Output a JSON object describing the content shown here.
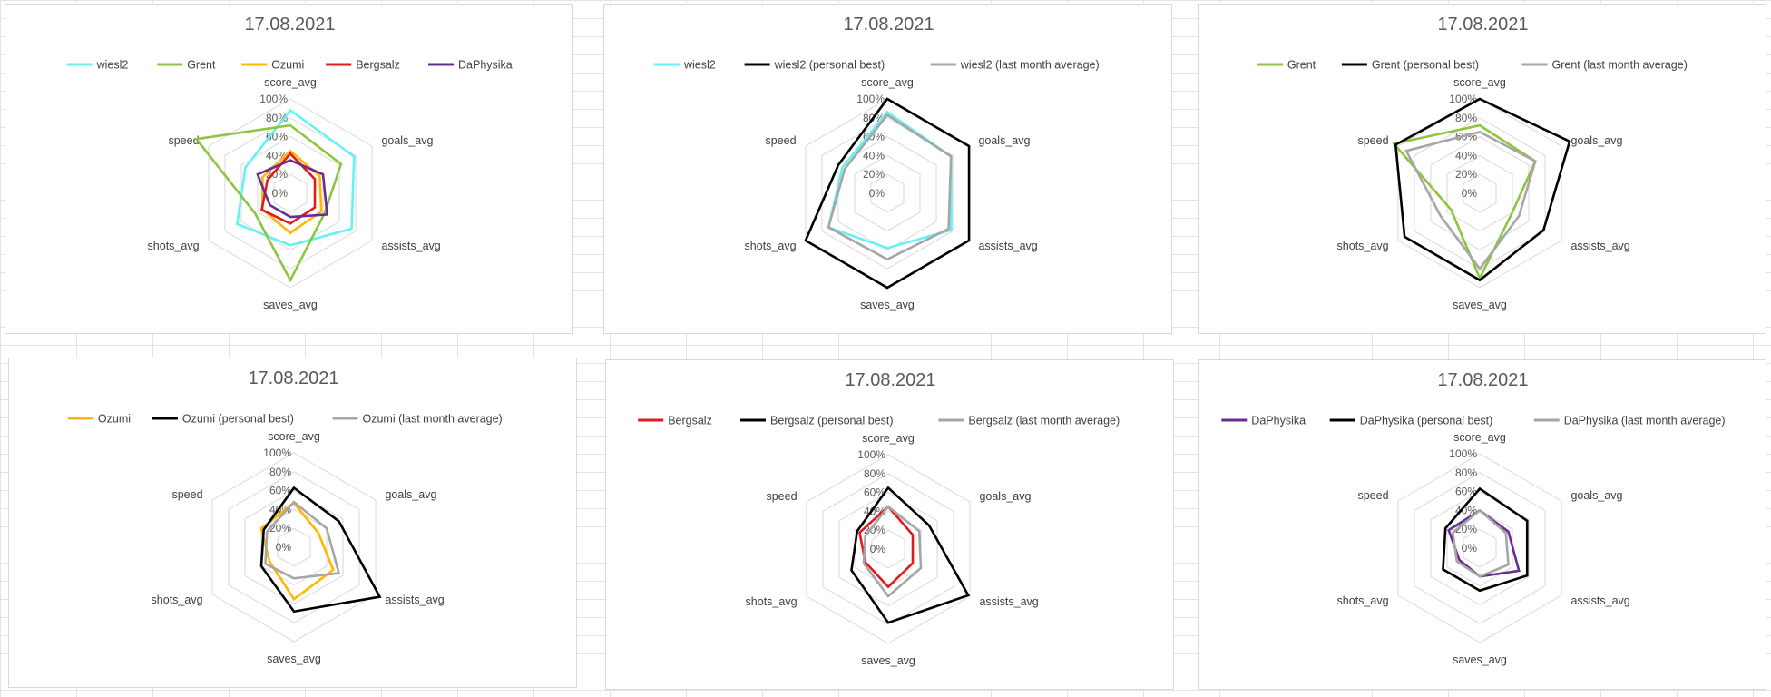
{
  "chart_data": [
    {
      "type": "radar",
      "title": "17.08.2021",
      "axes": [
        "score_avg",
        "goals_avg",
        "assists_avg",
        "saves_avg",
        "shots_avg",
        "speed"
      ],
      "ticks": [
        "0%",
        "20%",
        "40%",
        "60%",
        "80%",
        "100%"
      ],
      "rlim": [
        0,
        100
      ],
      "legend_position": "top",
      "grid": true,
      "series": [
        {
          "name": "wiesl2",
          "color": "#66f2f2",
          "values": [
            88,
            78,
            75,
            55,
            65,
            55
          ]
        },
        {
          "name": "Grent",
          "color": "#8cc63f",
          "values": [
            72,
            62,
            42,
            92,
            43,
            115
          ]
        },
        {
          "name": "Ozumi",
          "color": "#ffb800",
          "values": [
            45,
            36,
            38,
            42,
            34,
            34
          ]
        },
        {
          "name": "Bergsalz",
          "color": "#e31a1c",
          "values": [
            42,
            30,
            30,
            32,
            35,
            28
          ]
        },
        {
          "name": "DaPhysika",
          "color": "#6a2c91",
          "values": [
            35,
            40,
            45,
            25,
            25,
            40
          ]
        }
      ]
    },
    {
      "type": "radar",
      "title": "17.08.2021",
      "axes": [
        "score_avg",
        "goals_avg",
        "assists_avg",
        "saves_avg",
        "shots_avg",
        "speed"
      ],
      "ticks": [
        "0%",
        "20%",
        "40%",
        "60%",
        "80%",
        "100%"
      ],
      "rlim": [
        0,
        100
      ],
      "legend_position": "top",
      "grid": true,
      "series": [
        {
          "name": "wiesl2",
          "color": "#66f2f2",
          "values": [
            86,
            78,
            78,
            58,
            72,
            55
          ]
        },
        {
          "name": "wiesl2 (personal best)",
          "color": "#000000",
          "values": [
            100,
            100,
            100,
            100,
            100,
            60
          ]
        },
        {
          "name": "wiesl2 (last month average)",
          "color": "#a6a6a6",
          "values": [
            83,
            78,
            75,
            70,
            72,
            52
          ]
        }
      ]
    },
    {
      "type": "radar",
      "title": "17.08.2021",
      "axes": [
        "score_avg",
        "goals_avg",
        "assists_avg",
        "saves_avg",
        "shots_avg",
        "speed"
      ],
      "ticks": [
        "0%",
        "20%",
        "40%",
        "60%",
        "80%",
        "100%"
      ],
      "rlim": [
        0,
        100
      ],
      "legend_position": "top",
      "grid": true,
      "series": [
        {
          "name": "Grent",
          "color": "#8cc63f",
          "values": [
            72,
            68,
            40,
            90,
            35,
            105
          ]
        },
        {
          "name": "Grent (personal best)",
          "color": "#000000",
          "values": [
            100,
            110,
            78,
            92,
            92,
            103
          ]
        },
        {
          "name": "Grent (last month average)",
          "color": "#a6a6a6",
          "values": [
            65,
            68,
            48,
            80,
            48,
            90
          ]
        }
      ]
    },
    {
      "type": "radar",
      "title": "17.08.2021",
      "axes": [
        "score_avg",
        "goals_avg",
        "assists_avg",
        "saves_avg",
        "shots_avg",
        "speed"
      ],
      "ticks": [
        "0%",
        "20%",
        "40%",
        "60%",
        "80%",
        "100%"
      ],
      "rlim": [
        0,
        100
      ],
      "legend_position": "top",
      "grid": true,
      "series": [
        {
          "name": "Ozumi",
          "color": "#ffb800",
          "values": [
            47,
            30,
            48,
            55,
            30,
            40
          ]
        },
        {
          "name": "Ozumi (personal best)",
          "color": "#000000",
          "values": [
            63,
            55,
            105,
            68,
            40,
            37
          ]
        },
        {
          "name": "Ozumi (last month average)",
          "color": "#a6a6a6",
          "values": [
            48,
            40,
            55,
            33,
            35,
            33
          ]
        }
      ]
    },
    {
      "type": "radar",
      "title": "17.08.2021",
      "axes": [
        "score_avg",
        "goals_avg",
        "assists_avg",
        "saves_avg",
        "shots_avg",
        "speed"
      ],
      "ticks": [
        "0%",
        "20%",
        "40%",
        "60%",
        "80%",
        "100%"
      ],
      "rlim": [
        0,
        100
      ],
      "legend_position": "top",
      "grid": true,
      "series": [
        {
          "name": "Bergsalz",
          "color": "#e31a1c",
          "values": [
            45,
            30,
            30,
            40,
            28,
            35
          ]
        },
        {
          "name": "Bergsalz (personal best)",
          "color": "#000000",
          "values": [
            65,
            50,
            98,
            78,
            45,
            38
          ]
        },
        {
          "name": "Bergsalz (last month average)",
          "color": "#a6a6a6",
          "values": [
            45,
            38,
            40,
            50,
            30,
            28
          ]
        }
      ]
    },
    {
      "type": "radar",
      "title": "17.08.2021",
      "axes": [
        "score_avg",
        "goals_avg",
        "assists_avg",
        "saves_avg",
        "shots_avg",
        "speed"
      ],
      "ticks": [
        "0%",
        "20%",
        "40%",
        "60%",
        "80%",
        "100%"
      ],
      "rlim": [
        0,
        100
      ],
      "legend_position": "top",
      "grid": true,
      "series": [
        {
          "name": "DaPhysika",
          "color": "#6a2c91",
          "values": [
            40,
            35,
            48,
            30,
            25,
            38
          ]
        },
        {
          "name": "DaPhysika (personal best)",
          "color": "#000000",
          "values": [
            63,
            58,
            58,
            45,
            45,
            42
          ]
        },
        {
          "name": "DaPhysika (last month average)",
          "color": "#a6a6a6",
          "values": [
            40,
            32,
            35,
            30,
            28,
            33
          ]
        }
      ]
    }
  ]
}
